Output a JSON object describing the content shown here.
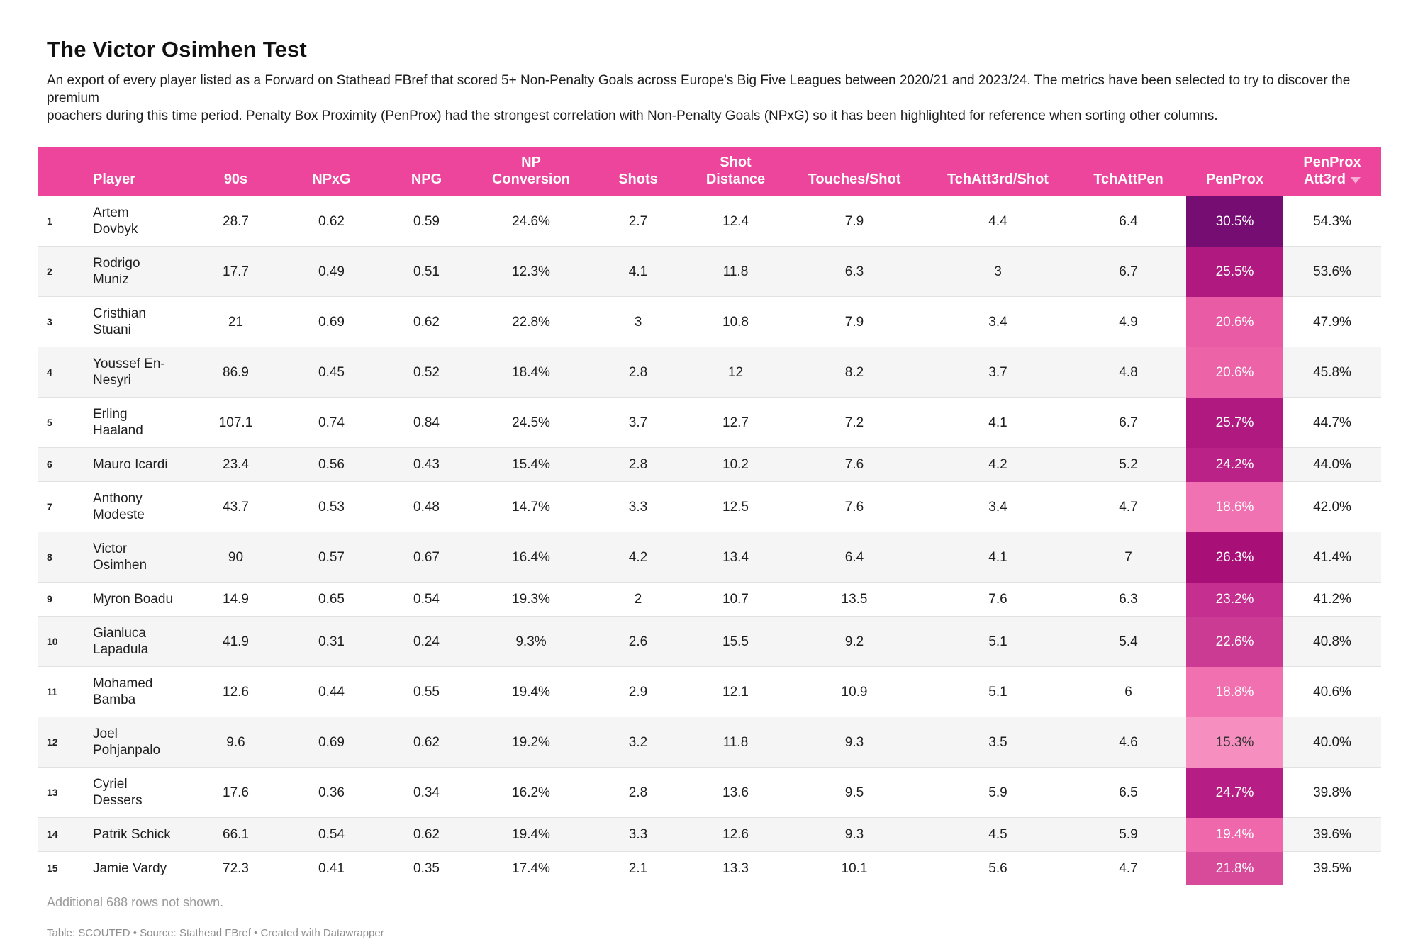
{
  "title": "The Victor Osimhen Test",
  "description": "An export of every player listed as a Forward on Stathead FBref that scored 5+ Non-Penalty Goals across Europe's Big Five Leagues between 2020/21 and 2023/24. The metrics have been selected to try to discover the premium\npoachers during this time period. Penalty Box Proximity (PenProx) had the strongest correlation with Non-Penalty Goals (NPxG) so it has been highlighted for reference when sorting other columns.",
  "footnote": "Additional 688 rows not shown.",
  "attribution": "Table: SCOUTED • Source: Stathead FBref • Created with Datawrapper",
  "theme": {
    "header_bg": "#ED459B",
    "header_text": "#FFFFFF",
    "zebra_bg": "#F5F5F5",
    "row_divider": "#E2E2E2",
    "sort_arrow_color": "#F7AED5"
  },
  "chart_data": {
    "type": "table",
    "title": "The Victor Osimhen Test",
    "sorted_column_index": 11,
    "sort_direction": "descending",
    "columns": [
      "Player",
      "90s",
      "NPxG",
      "NPG",
      "NP\nConversion",
      "Shots",
      "Shot\nDistance",
      "Touches/Shot",
      "TchAtt3rd/Shot",
      "TchAttPen",
      "PenProx",
      "PenProx\nAtt3rd"
    ],
    "rows": [
      {
        "rank": "1",
        "player": "Artem\nDovbyk",
        "values": [
          "28.7",
          "0.62",
          "0.59",
          "24.6%",
          "2.7",
          "12.4",
          "7.9",
          "4.4",
          "6.4"
        ],
        "penprox": "30.5%",
        "penprox_bg": "#750D72",
        "penprox_text": "#FFFFFF",
        "penprox_att3rd": "54.3%"
      },
      {
        "rank": "2",
        "player": "Rodrigo\nMuniz",
        "values": [
          "17.7",
          "0.49",
          "0.51",
          "12.3%",
          "4.1",
          "11.8",
          "6.3",
          "3",
          "6.7"
        ],
        "penprox": "25.5%",
        "penprox_bg": "#B01980",
        "penprox_text": "#FFFFFF",
        "penprox_att3rd": "53.6%"
      },
      {
        "rank": "3",
        "player": "Cristhian\nStuani",
        "values": [
          "21",
          "0.69",
          "0.62",
          "22.8%",
          "3",
          "10.8",
          "7.9",
          "3.4",
          "4.9"
        ],
        "penprox": "20.6%",
        "penprox_bg": "#E95BA4",
        "penprox_text": "#FFFFFF",
        "penprox_att3rd": "47.9%"
      },
      {
        "rank": "4",
        "player": "Youssef En-\nNesyri",
        "values": [
          "86.9",
          "0.45",
          "0.52",
          "18.4%",
          "2.8",
          "12",
          "8.2",
          "3.7",
          "4.8"
        ],
        "penprox": "20.6%",
        "penprox_bg": "#EC63A8",
        "penprox_text": "#FFFFFF",
        "penprox_att3rd": "45.8%"
      },
      {
        "rank": "5",
        "player": "Erling\nHaaland",
        "values": [
          "107.1",
          "0.74",
          "0.84",
          "24.5%",
          "3.7",
          "12.7",
          "7.2",
          "4.1",
          "6.7"
        ],
        "penprox": "25.7%",
        "penprox_bg": "#AF1980",
        "penprox_text": "#FFFFFF",
        "penprox_att3rd": "44.7%"
      },
      {
        "rank": "6",
        "player": "Mauro Icardi",
        "values": [
          "23.4",
          "0.56",
          "0.43",
          "15.4%",
          "2.8",
          "10.2",
          "7.6",
          "4.2",
          "5.2"
        ],
        "penprox": "24.2%",
        "penprox_bg": "#BB2287",
        "penprox_text": "#FFFFFF",
        "penprox_att3rd": "44.0%"
      },
      {
        "rank": "7",
        "player": "Anthony\nModeste",
        "values": [
          "43.7",
          "0.53",
          "0.48",
          "14.7%",
          "3.3",
          "12.5",
          "7.6",
          "3.4",
          "4.7"
        ],
        "penprox": "18.6%",
        "penprox_bg": "#F172B2",
        "penprox_text": "#FFFFFF",
        "penprox_att3rd": "42.0%"
      },
      {
        "rank": "8",
        "player": "Victor\nOsimhen",
        "values": [
          "90",
          "0.57",
          "0.67",
          "16.4%",
          "4.2",
          "13.4",
          "6.4",
          "4.1",
          "7"
        ],
        "penprox": "26.3%",
        "penprox_bg": "#A81078",
        "penprox_text": "#FFFFFF",
        "penprox_att3rd": "41.4%"
      },
      {
        "rank": "9",
        "player": "Myron Boadu",
        "values": [
          "14.9",
          "0.65",
          "0.54",
          "19.3%",
          "2",
          "10.7",
          "13.5",
          "7.6",
          "6.3"
        ],
        "penprox": "23.2%",
        "penprox_bg": "#C53090",
        "penprox_text": "#FFFFFF",
        "penprox_att3rd": "41.2%"
      },
      {
        "rank": "10",
        "player": "Gianluca\nLapadula",
        "values": [
          "41.9",
          "0.31",
          "0.24",
          "9.3%",
          "2.6",
          "15.5",
          "9.2",
          "5.1",
          "5.4"
        ],
        "penprox": "22.6%",
        "penprox_bg": "#CB3A93",
        "penprox_text": "#FFFFFF",
        "penprox_att3rd": "40.8%"
      },
      {
        "rank": "11",
        "player": "Mohamed\nBamba",
        "values": [
          "12.6",
          "0.44",
          "0.55",
          "19.4%",
          "2.9",
          "12.1",
          "10.9",
          "5.1",
          "6"
        ],
        "penprox": "18.8%",
        "penprox_bg": "#F170B0",
        "penprox_text": "#FFFFFF",
        "penprox_att3rd": "40.6%"
      },
      {
        "rank": "12",
        "player": "Joel\nPohjanpalo",
        "values": [
          "9.6",
          "0.69",
          "0.62",
          "19.2%",
          "3.2",
          "11.8",
          "9.3",
          "3.5",
          "4.6"
        ],
        "penprox": "15.3%",
        "penprox_bg": "#F68FC0",
        "penprox_text": "#333333",
        "penprox_att3rd": "40.0%"
      },
      {
        "rank": "13",
        "player": "Cyriel\nDessers",
        "values": [
          "17.6",
          "0.36",
          "0.34",
          "16.2%",
          "2.8",
          "13.6",
          "9.5",
          "5.9",
          "6.5"
        ],
        "penprox": "24.7%",
        "penprox_bg": "#B71E85",
        "penprox_text": "#FFFFFF",
        "penprox_att3rd": "39.8%"
      },
      {
        "rank": "14",
        "player": "Patrik Schick",
        "values": [
          "66.1",
          "0.54",
          "0.62",
          "19.4%",
          "3.3",
          "12.6",
          "9.3",
          "4.5",
          "5.9"
        ],
        "penprox": "19.4%",
        "penprox_bg": "#EF68AC",
        "penprox_text": "#FFFFFF",
        "penprox_att3rd": "39.6%"
      },
      {
        "rank": "15",
        "player": "Jamie Vardy",
        "values": [
          "72.3",
          "0.41",
          "0.35",
          "17.4%",
          "2.1",
          "13.3",
          "10.1",
          "5.6",
          "4.7"
        ],
        "penprox": "21.8%",
        "penprox_bg": "#D84B9B",
        "penprox_text": "#FFFFFF",
        "penprox_att3rd": "39.5%"
      }
    ]
  }
}
